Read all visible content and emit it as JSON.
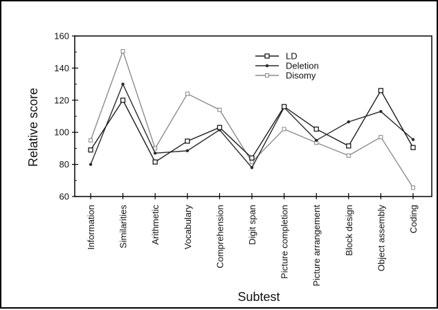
{
  "chart_data": {
    "type": "line",
    "title": "",
    "xlabel": "Subtest",
    "ylabel": "Relative score",
    "ylim": [
      60,
      160
    ],
    "yticks": [
      60,
      80,
      100,
      120,
      140,
      160
    ],
    "grid": false,
    "legend_position": "top-right",
    "categories": [
      "Information",
      "Similarities",
      "Arithmetic",
      "Vocabulary",
      "Comprehension",
      "Digit span",
      "Picture completion",
      "Picture arrangement",
      "Block design",
      "Object assembly",
      "Coding"
    ],
    "series": [
      {
        "name": "LD",
        "color": "#1a1a1a",
        "marker": "square-open",
        "values": [
          89,
          120,
          81.5,
          94.5,
          103,
          84,
          116,
          102,
          91.5,
          126,
          90.5
        ]
      },
      {
        "name": "Deletion",
        "color": "#2a2a2a",
        "marker": "dot",
        "values": [
          80,
          130,
          87,
          88.5,
          101.5,
          78,
          115.5,
          95,
          106.5,
          113,
          95.5
        ]
      },
      {
        "name": "Disomy",
        "color": "#8c8c8c",
        "marker": "square-small",
        "values": [
          95,
          150.5,
          90,
          124,
          114,
          81.5,
          102,
          93.5,
          85.5,
          97,
          65.5
        ]
      }
    ]
  }
}
